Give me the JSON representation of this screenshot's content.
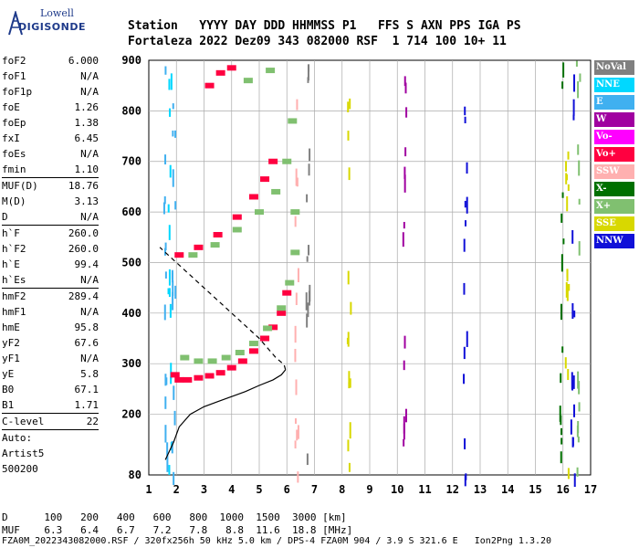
{
  "logo": {
    "line1": "Lowell",
    "line2": "DIGISONDE"
  },
  "header": {
    "labels": [
      "Station",
      "YYYY DAY",
      "DDD",
      "HHMMSS",
      "P1",
      "FFS",
      "S",
      "AXN",
      "PPS",
      "IGA",
      "PS"
    ],
    "values": [
      "Fortaleza",
      "2022 Dez09",
      "343",
      "082000",
      "RSF",
      "1",
      "714",
      "100",
      "10+",
      "11"
    ]
  },
  "params": [
    [
      {
        "k": "foF2",
        "v": "6.000"
      },
      {
        "k": "foF1",
        "v": "N/A"
      },
      {
        "k": "foF1p",
        "v": "N/A"
      },
      {
        "k": "foE",
        "v": "1.26"
      },
      {
        "k": "foEp",
        "v": "1.38"
      },
      {
        "k": "fxI",
        "v": "6.45"
      },
      {
        "k": "foEs",
        "v": "N/A"
      },
      {
        "k": "fmin",
        "v": "1.10"
      }
    ],
    [
      {
        "k": "MUF(D)",
        "v": "18.76"
      },
      {
        "k": "M(D)",
        "v": "3.13"
      },
      {
        "k": "D",
        "v": "N/A"
      }
    ],
    [
      {
        "k": "h`F",
        "v": "260.0"
      },
      {
        "k": "h`F2",
        "v": "260.0"
      },
      {
        "k": "h`E",
        "v": "99.4"
      },
      {
        "k": "h`Es",
        "v": "N/A"
      }
    ],
    [
      {
        "k": "hmF2",
        "v": "289.4"
      },
      {
        "k": "hmF1",
        "v": "N/A"
      },
      {
        "k": "hmE",
        "v": "95.8"
      },
      {
        "k": "yF2",
        "v": "67.6"
      },
      {
        "k": "yF1",
        "v": "N/A"
      },
      {
        "k": "yE",
        "v": "5.8"
      },
      {
        "k": "B0",
        "v": "67.1"
      },
      {
        "k": "B1",
        "v": "1.71"
      }
    ],
    [
      {
        "k": "C-level",
        "v": "22"
      }
    ]
  ],
  "auto": {
    "label": "Auto:",
    "name": "Artist5",
    "version": "500200"
  },
  "legend": [
    {
      "label": "NoVal",
      "color": "#808080"
    },
    {
      "label": "NNE",
      "color": "#00d8ff"
    },
    {
      "label": "E",
      "color": "#40b0f0"
    },
    {
      "label": "W",
      "color": "#a000a0"
    },
    {
      "label": "Vo-",
      "color": "#ff00ff"
    },
    {
      "label": "Vo+",
      "color": "#ff0040"
    },
    {
      "label": "SSW",
      "color": "#ffb0b0"
    },
    {
      "label": "X-",
      "color": "#007000"
    },
    {
      "label": "X+",
      "color": "#80c070"
    },
    {
      "label": "SSE",
      "color": "#d8d800"
    },
    {
      "label": "NNW",
      "color": "#1010d8"
    }
  ],
  "chart_data": {
    "type": "scatter",
    "title": "",
    "xlabel": "",
    "ylabel": "",
    "xlim": [
      1,
      17
    ],
    "ylim": [
      80,
      900
    ],
    "x_ticks": [
      1,
      2,
      3,
      4,
      5,
      6,
      7,
      8,
      9,
      10,
      11,
      12,
      13,
      14,
      15,
      16,
      17
    ],
    "y_ticks": [
      200,
      300,
      400,
      500,
      600,
      700,
      800,
      900
    ],
    "y_tick_bottom_label": "80",
    "grid": true,
    "series": [
      {
        "name": "Vo+",
        "color": "#ff0040",
        "points": [
          [
            1.95,
            278
          ],
          [
            2.1,
            268
          ],
          [
            2.4,
            268
          ],
          [
            2.8,
            272
          ],
          [
            3.2,
            276
          ],
          [
            3.6,
            282
          ],
          [
            4.0,
            292
          ],
          [
            4.4,
            305
          ],
          [
            4.8,
            325
          ],
          [
            5.2,
            350
          ],
          [
            5.5,
            372
          ],
          [
            5.8,
            400
          ],
          [
            6.0,
            440
          ],
          [
            2.1,
            515
          ],
          [
            2.8,
            530
          ],
          [
            3.5,
            555
          ],
          [
            4.2,
            590
          ],
          [
            4.8,
            630
          ],
          [
            5.2,
            665
          ],
          [
            5.5,
            700
          ],
          [
            3.2,
            850
          ],
          [
            3.6,
            875
          ],
          [
            4.0,
            885
          ]
        ]
      },
      {
        "name": "X+",
        "color": "#80c070",
        "points": [
          [
            2.3,
            312
          ],
          [
            2.8,
            305
          ],
          [
            3.3,
            305
          ],
          [
            3.8,
            312
          ],
          [
            4.3,
            322
          ],
          [
            4.8,
            340
          ],
          [
            5.3,
            370
          ],
          [
            5.8,
            410
          ],
          [
            6.1,
            460
          ],
          [
            6.3,
            520
          ],
          [
            6.3,
            600
          ],
          [
            2.6,
            515
          ],
          [
            3.4,
            535
          ],
          [
            4.2,
            565
          ],
          [
            5.0,
            600
          ],
          [
            5.6,
            640
          ],
          [
            6.0,
            700
          ],
          [
            6.2,
            780
          ],
          [
            4.6,
            860
          ],
          [
            5.4,
            880
          ]
        ]
      },
      {
        "name": "trace",
        "color": "#000000",
        "points": [
          [
            1.6,
            110
          ],
          [
            1.9,
            145
          ],
          [
            2.1,
            175
          ],
          [
            2.5,
            200
          ],
          [
            3.0,
            215
          ],
          [
            3.5,
            225
          ],
          [
            4.0,
            235
          ],
          [
            4.5,
            245
          ],
          [
            5.0,
            257
          ],
          [
            5.5,
            268
          ],
          [
            5.8,
            278
          ],
          [
            5.95,
            288
          ],
          [
            5.9,
            298
          ],
          [
            5.6,
            312
          ],
          [
            5.0,
            350
          ],
          [
            4.0,
            400
          ],
          [
            3.0,
            450
          ],
          [
            2.0,
            500
          ],
          [
            1.4,
            530
          ]
        ]
      }
    ]
  },
  "footer": {
    "d_label": "D",
    "d_values": [
      "100",
      "200",
      "400",
      "600",
      "800",
      "1000",
      "1500",
      "3000"
    ],
    "d_unit": "[km]",
    "muf_label": "MUF",
    "muf_values": [
      "6.3",
      "6.4",
      "6.7",
      "7.2",
      "7.8",
      "8.8",
      "11.6",
      "18.8"
    ],
    "muf_unit": "[MHz]",
    "info": "FZA0M_2022343082000.RSF / 320fx256h 50 kHz 5.0 km / DPS-4 FZA0M 904 / 3.9 S 321.6 E   Ion2Png 1.3.20"
  }
}
